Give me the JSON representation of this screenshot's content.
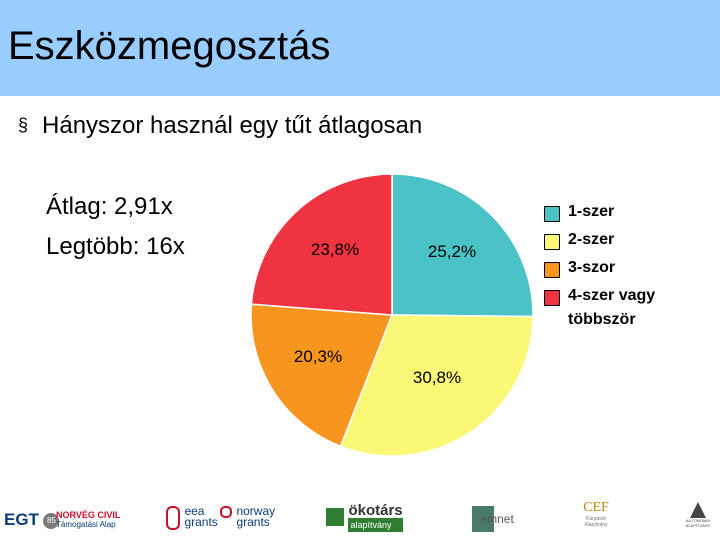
{
  "slide": {
    "title": "Eszközmegosztás",
    "bullet": "Hányszor használ egy tűt átlagosan",
    "bullet_icon": "square-bullet-icon",
    "stats": [
      "Átlag: 2,91x",
      "Legtöbb: 16x"
    ]
  },
  "chart_data": {
    "type": "pie",
    "categories": [
      "1-szer",
      "2-szer",
      "3-szor",
      "4-szer vagy többször"
    ],
    "values": [
      25.2,
      30.8,
      20.3,
      23.8
    ],
    "data_labels": [
      "25,2%",
      "30,8%",
      "20,3%",
      "23,8%"
    ],
    "colors": [
      "#4bc3c6",
      "#fbf877",
      "#f7961f",
      "#ef3340"
    ],
    "start_angle_deg": 0,
    "direction": "clockwise",
    "legend": "right"
  },
  "logos": {
    "egt": "EGT",
    "egt_badge": "85",
    "norveg_civil": "NORVÉG CIVIL",
    "norveg_sub": "Támogatási Alap",
    "eea": "eea",
    "eea_grants": "grants",
    "norway": "norway",
    "norway_grants": "grants",
    "okotars": "ökotárs",
    "okotars_sub": "alapítvány",
    "emnet": "emnet",
    "cef": "CEF",
    "cef_sub": "Kárpátok Alapítvány",
    "autonomia": "AUTONÓMIA ALAPÍTVÁNY"
  }
}
